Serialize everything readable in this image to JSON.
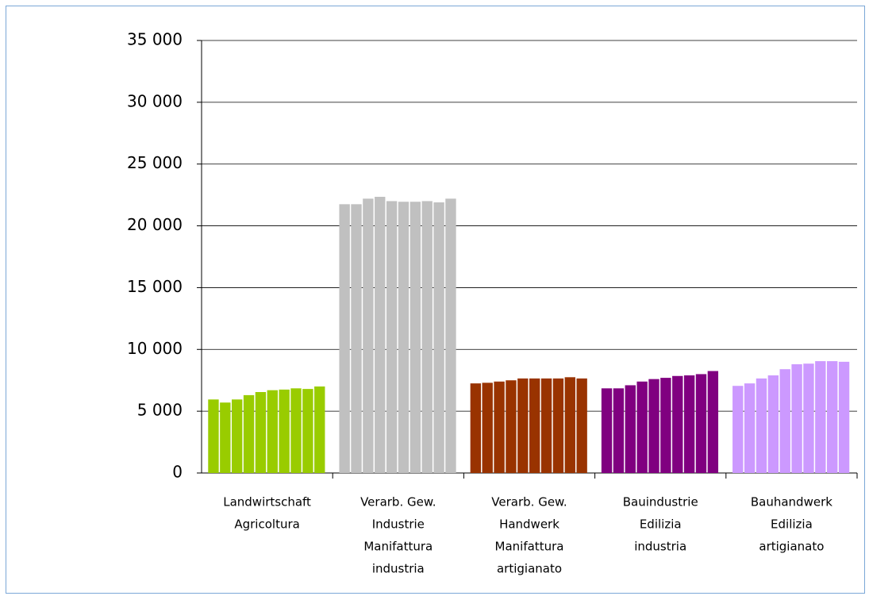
{
  "chart_data": {
    "type": "grouped-bar",
    "groups": [
      {
        "label": [
          "Landwirtschaft",
          "Agricoltura"
        ],
        "color": "#99cc00",
        "values": [
          5950,
          5700,
          5950,
          6300,
          6550,
          6700,
          6750,
          6850,
          6800,
          7000
        ]
      },
      {
        "label": [
          "Verarb. Gew.",
          "Industrie",
          "Manifattura",
          "industria"
        ],
        "color": "#c0c0c0",
        "values": [
          21750,
          21750,
          22200,
          22350,
          22000,
          21950,
          21950,
          22000,
          21900,
          22200
        ]
      },
      {
        "label": [
          "Verarb. Gew.",
          "Handwerk",
          "Manifattura",
          "artigianato"
        ],
        "color": "#993300",
        "values": [
          7250,
          7300,
          7400,
          7500,
          7650,
          7650,
          7650,
          7650,
          7750,
          7650
        ]
      },
      {
        "label": [
          "Bauindustrie",
          "Edilizia",
          "industria"
        ],
        "color": "#800080",
        "values": [
          6850,
          6850,
          7100,
          7400,
          7600,
          7700,
          7850,
          7900,
          8000,
          8250
        ]
      },
      {
        "label": [
          "Bauhandwerk",
          "Edilizia",
          "artigianato"
        ],
        "color": "#cc99ff",
        "values": [
          7050,
          7250,
          7650,
          7900,
          8400,
          8800,
          8850,
          9050,
          9050,
          9000
        ]
      }
    ],
    "ylim": [
      0,
      35000
    ],
    "yticks": [
      0,
      {
        "value": 5000,
        "label": "5 000"
      },
      {
        "value": 10000,
        "label": "10 000"
      },
      {
        "value": 15000,
        "label": "15 000"
      },
      {
        "value": 20000,
        "label": "20 000"
      },
      {
        "value": 25000,
        "label": "25 000"
      },
      {
        "value": 30000,
        "label": "30 000"
      },
      {
        "value": 35000,
        "label": "35 000"
      }
    ],
    "grid": true
  }
}
